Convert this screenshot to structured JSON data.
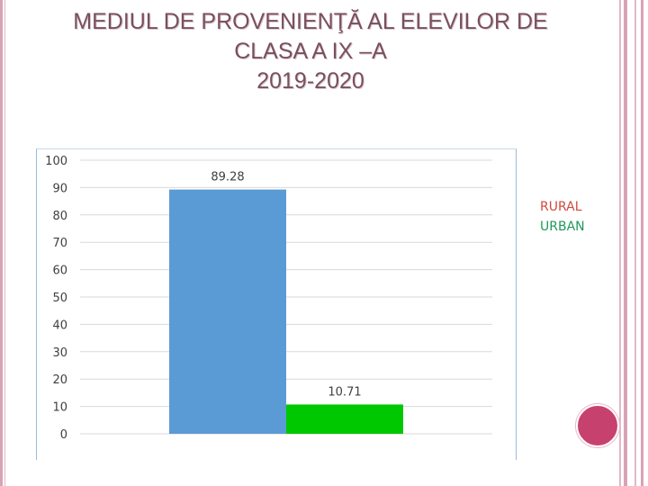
{
  "title": {
    "line1": "MEDIUL DE PROVENIENŢĂ AL ELEVILOR DE",
    "line2": "CLASA A IX –A",
    "line3": "2019-2020"
  },
  "legend": [
    "RURAL",
    "URBAN"
  ],
  "colors": {
    "bar_rural": "#5b9bd5",
    "bar_urban": "#00c800",
    "legend_rural": "#d04a3e",
    "legend_urban": "#1f9a5a",
    "title": "#7a4f5e",
    "decor_circle": "#c7416f"
  },
  "chart_data": {
    "type": "bar",
    "title": "MEDIUL DE PROVENIENŢĂ AL ELEVILOR DE CLASA A IX –A 2019-2020",
    "categories": [
      "RURAL",
      "URBAN"
    ],
    "values": [
      89.28,
      10.71
    ],
    "data_labels": [
      "89.28",
      "10.71"
    ],
    "ylim": [
      0,
      100
    ],
    "yticks": [
      "0",
      "10",
      "20",
      "30",
      "40",
      "50",
      "60",
      "70",
      "80",
      "90",
      "100"
    ],
    "xlabel": "",
    "ylabel": "",
    "grid": true,
    "legend_position": "right"
  }
}
